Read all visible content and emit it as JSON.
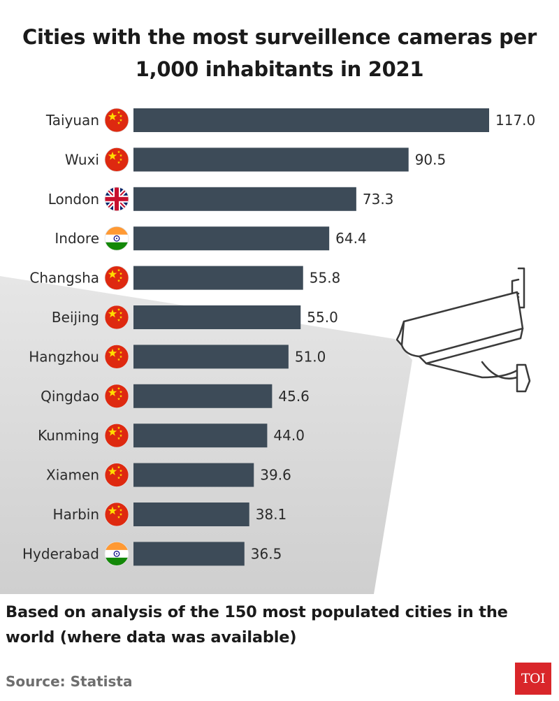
{
  "chart_data": {
    "type": "bar",
    "orientation": "horizontal",
    "title_lines": [
      "Cities with the most surveillence cameras per",
      "1,000 inhabitants in 2021"
    ],
    "categories": [
      "Taiyuan",
      "Wuxi",
      "London",
      "Indore",
      "Changsha",
      "Beijing",
      "Hangzhou",
      "Qingdao",
      "Kunming",
      "Xiamen",
      "Harbin",
      "Hyderabad"
    ],
    "values": [
      117.0,
      90.5,
      73.3,
      64.4,
      55.8,
      55.0,
      51.0,
      45.6,
      44.0,
      39.6,
      38.1,
      36.5
    ],
    "value_labels": [
      "117.0",
      "90.5",
      "73.3",
      "64.4",
      "55.8",
      "55.0",
      "51.0",
      "45.6",
      "44.0",
      "39.6",
      "38.1",
      "36.5"
    ],
    "flags": [
      "china",
      "china",
      "uk",
      "india",
      "china",
      "china",
      "china",
      "china",
      "china",
      "china",
      "china",
      "india"
    ],
    "xlim": [
      0,
      117.0
    ],
    "bar_color": "#3d4b58"
  },
  "footer": {
    "note": "Based on analysis of the 150 most populated cities in the world (where data was available)",
    "source": "Source: Statista",
    "logo_text": "TOI"
  },
  "colors": {
    "china_red": "#de2910",
    "china_star": "#ffde00",
    "uk_blue": "#012169",
    "uk_red": "#c8102e",
    "india_saffron": "#ff9933",
    "india_green": "#138808",
    "india_navy": "#000080",
    "shadow": "#dcdcdc"
  }
}
